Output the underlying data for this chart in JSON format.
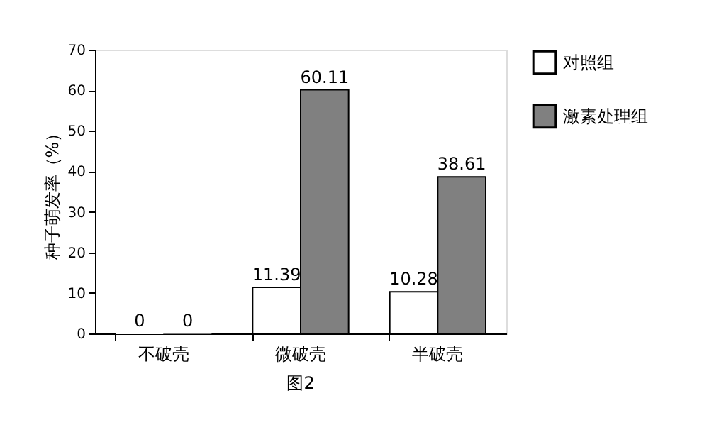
{
  "chart_data": {
    "type": "bar",
    "ylabel": "种子萌发率（%）",
    "categories": [
      "不破壳",
      "微破壳",
      "半破壳"
    ],
    "series": [
      {
        "name": "对照组",
        "color": "#ffffff",
        "values": [
          0,
          11.39,
          10.28
        ]
      },
      {
        "name": "激素处理组",
        "color": "#808080",
        "values": [
          0,
          60.11,
          38.61
        ]
      }
    ],
    "ylim": [
      0,
      70
    ],
    "yticks": [
      0,
      10,
      20,
      30,
      40,
      50,
      60,
      70
    ],
    "data_labels": true,
    "grid": false,
    "legend": "top right",
    "annotations": [
      "图2"
    ]
  }
}
